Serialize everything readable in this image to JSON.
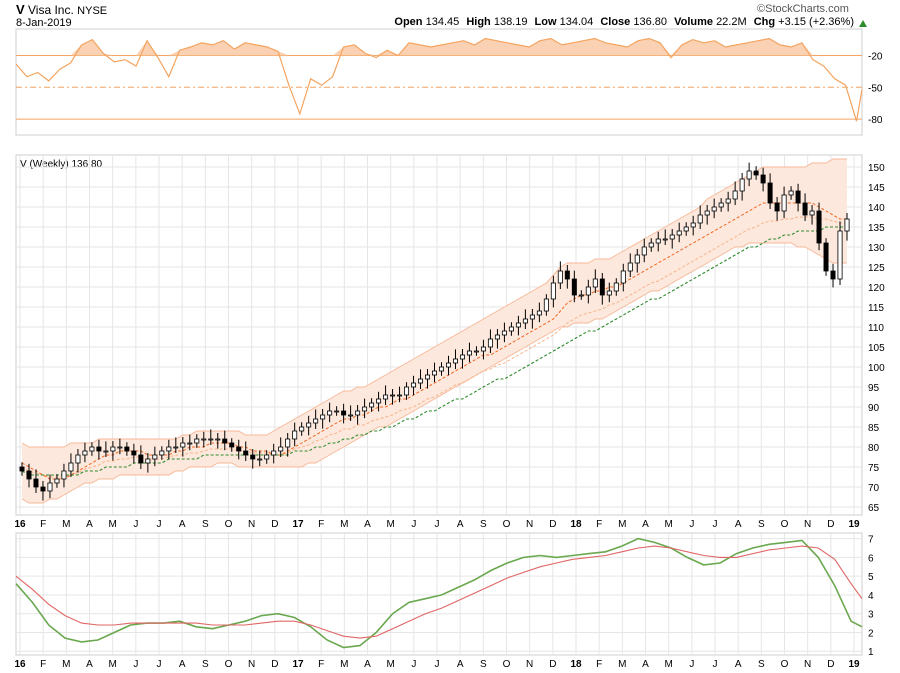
{
  "header": {
    "ticker": "V",
    "company": "Visa Inc.",
    "exchange": "NYSE",
    "date": "8-Jan-2019",
    "open_label": "Open",
    "open": "134.45",
    "high_label": "High",
    "high": "138.19",
    "low_label": "Low",
    "low": "134.04",
    "close_label": "Close",
    "close": "136.80",
    "volume_label": "Volume",
    "volume": "22.2M",
    "chg_label": "Chg",
    "chg": "+3.15 (+2.36%)",
    "brand": "©StockCharts.com"
  },
  "colors": {
    "rsi": "#f4a460",
    "rsi_fill": "#f9c9a4",
    "band_fill": "#fce8dc",
    "band_line": "#f7b99a",
    "ma_short": "#f26522",
    "ma_mid": "#f8b38a",
    "ma_long": "#2e8b2e",
    "green_line": "#6aa84f",
    "red_line": "#e06666",
    "grid": "#e6e6e6",
    "guide": "#f4a460"
  },
  "chart_data": [
    {
      "type": "line",
      "panel": "upper-indicator",
      "yticks": [
        -20,
        -50,
        -80
      ],
      "ylim": [
        -95,
        5
      ],
      "reference_lines": [
        -20,
        -50,
        -80
      ],
      "series": [
        {
          "x": [
            0,
            2,
            4,
            6,
            8,
            10,
            12,
            14,
            16,
            18,
            20,
            22,
            24,
            26,
            28,
            30,
            32,
            34,
            36,
            38,
            40,
            42,
            44,
            46,
            48,
            50,
            52,
            54,
            56,
            58,
            60,
            62,
            64,
            66,
            68,
            70,
            72,
            74,
            76,
            78,
            80,
            82,
            84,
            86,
            88,
            90,
            92,
            94,
            96,
            98,
            100,
            102,
            104,
            106,
            108,
            110,
            112,
            114,
            116,
            118,
            120,
            122,
            124,
            126,
            128,
            130,
            132,
            134,
            136,
            138,
            140,
            142,
            144,
            146,
            148,
            150,
            152,
            154,
            155
          ],
          "values": [
            -28,
            -40,
            -36,
            -44,
            -33,
            -27,
            -10,
            -5,
            -18,
            -26,
            -24,
            -30,
            -6,
            -22,
            -40,
            -15,
            -12,
            -8,
            -10,
            -6,
            -14,
            -8,
            -10,
            -12,
            -16,
            -48,
            -75,
            -42,
            -48,
            -40,
            -12,
            -10,
            -18,
            -22,
            -15,
            -20,
            -8,
            -10,
            -12,
            -10,
            -8,
            -6,
            -10,
            -4,
            -6,
            -8,
            -10,
            -12,
            -6,
            -4,
            -10,
            -8,
            -6,
            -4,
            -8,
            -10,
            -12,
            -6,
            -4,
            -8,
            -22,
            -10,
            -5,
            -8,
            -6,
            -12,
            -10,
            -8,
            -6,
            -4,
            -10,
            -12,
            -8,
            -24,
            -30,
            -42,
            -48,
            -82,
            -52
          ]
        }
      ]
    },
    {
      "type": "candlestick",
      "panel": "price",
      "title": "V (Weekly) 136.80",
      "series_name": "V",
      "interval": "Weekly",
      "last": "136.80",
      "yticks": [
        65,
        70,
        75,
        80,
        85,
        90,
        95,
        100,
        105,
        110,
        115,
        120,
        125,
        130,
        135,
        140,
        145,
        150
      ],
      "ylim": [
        63,
        153
      ],
      "x_labels": [
        "16",
        "F",
        "M",
        "A",
        "M",
        "J",
        "J",
        "A",
        "S",
        "O",
        "N",
        "D",
        "17",
        "F",
        "M",
        "A",
        "M",
        "J",
        "J",
        "A",
        "S",
        "O",
        "N",
        "D",
        "18",
        "F",
        "M",
        "A",
        "M",
        "J",
        "J",
        "A",
        "S",
        "O",
        "N",
        "D",
        "19"
      ],
      "bold_x_labels": [
        "16",
        "17",
        "18",
        "19"
      ],
      "close": [
        74,
        72,
        70,
        69,
        71,
        72,
        74,
        76,
        78,
        79,
        80,
        79,
        79,
        80,
        80,
        79,
        78,
        76,
        77,
        78,
        79,
        80,
        80,
        81,
        81,
        82,
        82,
        82,
        82,
        81,
        80,
        79,
        78,
        77,
        77,
        78,
        79,
        80,
        82,
        84,
        85,
        86,
        87,
        88,
        89,
        89,
        88,
        88,
        89,
        90,
        91,
        92,
        93,
        93,
        93,
        95,
        96,
        97,
        98,
        99,
        100,
        101,
        102,
        103,
        104,
        104,
        105,
        107,
        108,
        109,
        110,
        111,
        112,
        113,
        114,
        117,
        121,
        124,
        122,
        118,
        118,
        120,
        122,
        118,
        119,
        121,
        124,
        126,
        128,
        130,
        131,
        132,
        132,
        133,
        134,
        135,
        136,
        138,
        139,
        140,
        141,
        142,
        144,
        147,
        149,
        148,
        146,
        141,
        139,
        143,
        144,
        141,
        138,
        139,
        131,
        124,
        122,
        134,
        137
      ],
      "band_upper": [
        81,
        80,
        80,
        80,
        80,
        80,
        80,
        81,
        81,
        81,
        81,
        82,
        82,
        82,
        82,
        82,
        82,
        82,
        82,
        82,
        82,
        82,
        82,
        83,
        83,
        84,
        84,
        84,
        84,
        84,
        84,
        84,
        83,
        83,
        83,
        83,
        84,
        85,
        86,
        87,
        88,
        89,
        90,
        91,
        92,
        93,
        94,
        94,
        95,
        95,
        96,
        97,
        98,
        99,
        100,
        101,
        102,
        103,
        104,
        105,
        106,
        107,
        108,
        109,
        110,
        111,
        112,
        113,
        114,
        115,
        116,
        117,
        118,
        119,
        120,
        121,
        123,
        125,
        126,
        126,
        126,
        126,
        127,
        127,
        127,
        128,
        129,
        130,
        131,
        132,
        133,
        134,
        135,
        136,
        137,
        138,
        139,
        140,
        142,
        143,
        144,
        145,
        146,
        147,
        148,
        149,
        150,
        150,
        150,
        150,
        150,
        150,
        150,
        151,
        151,
        151,
        152,
        152,
        152
      ],
      "band_lower": [
        67,
        66,
        66,
        66,
        67,
        67,
        68,
        69,
        70,
        71,
        71,
        72,
        72,
        72,
        73,
        73,
        73,
        73,
        73,
        73,
        73,
        73,
        74,
        74,
        75,
        75,
        75,
        75,
        76,
        76,
        76,
        75,
        75,
        75,
        75,
        75,
        75,
        75,
        75,
        75,
        75,
        76,
        76,
        77,
        78,
        79,
        80,
        81,
        82,
        83,
        84,
        85,
        85,
        86,
        87,
        88,
        89,
        90,
        91,
        92,
        93,
        94,
        95,
        96,
        97,
        98,
        99,
        100,
        101,
        102,
        103,
        104,
        105,
        106,
        107,
        108,
        109,
        110,
        110,
        111,
        111,
        111,
        112,
        112,
        113,
        114,
        115,
        116,
        117,
        118,
        119,
        119,
        120,
        121,
        122,
        123,
        124,
        125,
        126,
        127,
        128,
        129,
        130,
        130,
        131,
        131,
        131,
        131,
        131,
        131,
        131,
        130,
        130,
        129,
        128,
        127,
        126,
        126,
        126
      ],
      "ma_short": [
        76,
        75,
        74,
        73,
        72,
        72,
        72,
        73,
        74,
        75,
        76,
        77,
        78,
        78,
        79,
        79,
        79,
        79,
        78,
        78,
        78,
        78,
        79,
        79,
        80,
        80,
        80,
        81,
        81,
        81,
        81,
        80,
        80,
        79,
        79,
        79,
        78,
        78,
        79,
        80,
        81,
        82,
        83,
        84,
        85,
        86,
        87,
        87,
        88,
        88,
        89,
        90,
        90,
        91,
        92,
        92,
        93,
        94,
        95,
        96,
        97,
        98,
        99,
        100,
        101,
        102,
        103,
        103,
        104,
        105,
        106,
        107,
        108,
        109,
        110,
        111,
        112,
        114,
        116,
        117,
        118,
        118,
        119,
        119,
        120,
        120,
        121,
        122,
        123,
        124,
        125,
        126,
        127,
        128,
        129,
        130,
        131,
        132,
        133,
        134,
        135,
        136,
        137,
        138,
        139,
        140,
        141,
        141,
        141,
        141,
        141,
        141,
        141,
        141,
        140,
        139,
        138,
        137,
        137
      ],
      "ma_long": [
        74,
        73,
        73,
        73,
        73,
        73,
        73,
        73,
        73,
        74,
        74,
        74,
        75,
        75,
        75,
        75,
        76,
        76,
        76,
        76,
        76,
        77,
        77,
        77,
        77,
        77,
        78,
        78,
        78,
        78,
        78,
        78,
        78,
        78,
        78,
        78,
        78,
        78,
        78,
        79,
        79,
        79,
        80,
        80,
        81,
        81,
        82,
        82,
        83,
        83,
        84,
        84,
        85,
        85,
        86,
        87,
        87,
        88,
        89,
        89,
        90,
        91,
        92,
        92,
        93,
        94,
        95,
        96,
        97,
        97,
        98,
        99,
        100,
        101,
        102,
        103,
        104,
        105,
        106,
        107,
        108,
        109,
        109,
        110,
        111,
        112,
        113,
        114,
        115,
        116,
        117,
        117,
        118,
        119,
        120,
        121,
        122,
        123,
        124,
        125,
        126,
        127,
        128,
        129,
        130,
        130,
        131,
        132,
        132,
        133,
        133,
        134,
        134,
        134,
        134,
        135,
        135,
        135,
        135
      ]
    },
    {
      "type": "line",
      "panel": "lower-indicator",
      "yticks": [
        1,
        2,
        3,
        4,
        5,
        6,
        7
      ],
      "ylim": [
        0.8,
        7.3
      ],
      "x_labels": [
        "16",
        "F",
        "M",
        "A",
        "M",
        "J",
        "J",
        "A",
        "S",
        "O",
        "N",
        "D",
        "17",
        "F",
        "M",
        "A",
        "M",
        "J",
        "J",
        "A",
        "S",
        "O",
        "N",
        "D",
        "18",
        "F",
        "M",
        "A",
        "M",
        "J",
        "J",
        "A",
        "S",
        "O",
        "N",
        "D",
        "19"
      ],
      "bold_x_labels": [
        "16",
        "17",
        "18",
        "19"
      ],
      "series": [
        {
          "color": "green",
          "x": [
            0,
            3,
            6,
            9,
            12,
            15,
            18,
            21,
            24,
            27,
            30,
            33,
            36,
            39,
            42,
            45,
            48,
            51,
            54,
            57,
            60,
            63,
            66,
            69,
            72,
            75,
            78,
            81,
            84,
            87,
            90,
            93,
            96,
            99,
            102,
            105,
            108,
            111,
            114,
            117,
            120,
            123,
            126,
            129,
            132,
            135,
            138,
            141,
            144,
            147,
            150,
            153,
            155
          ],
          "values": [
            4.6,
            3.6,
            2.4,
            1.7,
            1.5,
            1.6,
            2.0,
            2.4,
            2.5,
            2.5,
            2.6,
            2.3,
            2.2,
            2.4,
            2.6,
            2.9,
            3.0,
            2.8,
            2.3,
            1.6,
            1.2,
            1.3,
            2.0,
            3.0,
            3.6,
            3.8,
            4.0,
            4.4,
            4.8,
            5.3,
            5.7,
            6.0,
            6.1,
            6.0,
            6.1,
            6.2,
            6.3,
            6.6,
            7.0,
            6.8,
            6.5,
            6.0,
            5.6,
            5.7,
            6.2,
            6.5,
            6.7,
            6.8,
            6.9,
            6.0,
            4.5,
            2.6,
            2.3
          ]
        },
        {
          "color": "red",
          "x": [
            0,
            3,
            6,
            9,
            12,
            15,
            18,
            21,
            24,
            27,
            30,
            33,
            36,
            39,
            42,
            45,
            48,
            51,
            54,
            57,
            60,
            63,
            66,
            69,
            72,
            75,
            78,
            81,
            84,
            87,
            90,
            93,
            96,
            99,
            102,
            105,
            108,
            111,
            114,
            117,
            120,
            123,
            126,
            129,
            132,
            135,
            138,
            141,
            144,
            147,
            150,
            153,
            155
          ],
          "values": [
            5.0,
            4.3,
            3.5,
            2.9,
            2.5,
            2.4,
            2.4,
            2.5,
            2.5,
            2.5,
            2.5,
            2.5,
            2.4,
            2.4,
            2.4,
            2.5,
            2.6,
            2.6,
            2.4,
            2.1,
            1.8,
            1.7,
            1.8,
            2.2,
            2.6,
            3.0,
            3.3,
            3.7,
            4.1,
            4.5,
            4.9,
            5.2,
            5.5,
            5.7,
            5.9,
            6.0,
            6.1,
            6.3,
            6.5,
            6.6,
            6.5,
            6.3,
            6.1,
            6.0,
            6.0,
            6.2,
            6.4,
            6.5,
            6.6,
            6.5,
            5.9,
            4.6,
            3.8
          ]
        }
      ]
    }
  ]
}
